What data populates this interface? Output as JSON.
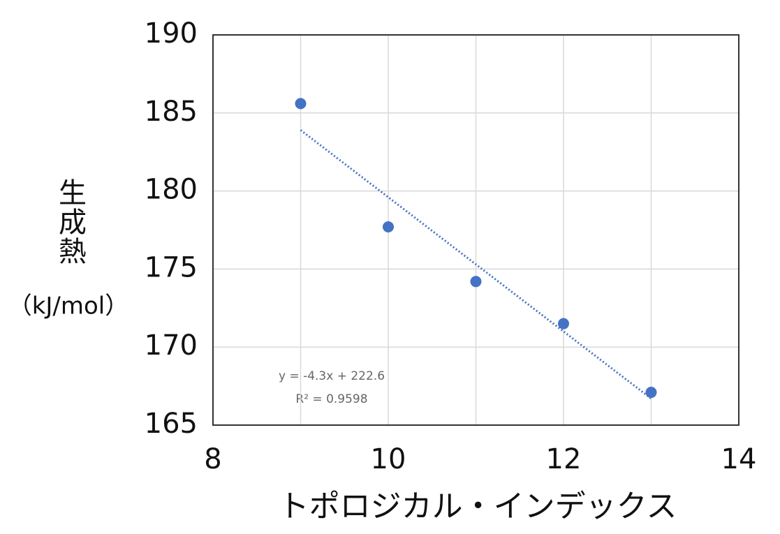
{
  "chart_data": {
    "type": "scatter",
    "xlabel": "トポロジカル・インデックス",
    "ylabel": "生成熱",
    "ylabel_unit": "（kJ/mol）",
    "series": [
      {
        "color": "#4472c4",
        "x": [
          9,
          10,
          11,
          12,
          13
        ],
        "values": [
          185.6,
          177.7,
          174.2,
          171.5,
          167.1
        ]
      }
    ],
    "trendline": {
      "slope": -4.3,
      "intercept": 222.6,
      "color": "#4472c4"
    },
    "annotations": [
      "y = -4.3x + 222.6",
      "R² = 0.9598"
    ],
    "xlim": [
      8,
      14
    ],
    "xticks": [
      8,
      10,
      12,
      14
    ],
    "xgrid": [
      9,
      10,
      11,
      12,
      13
    ],
    "ylim": [
      165,
      190
    ],
    "yticks": [
      165,
      170,
      175,
      180,
      185,
      190
    ],
    "grid": true
  }
}
